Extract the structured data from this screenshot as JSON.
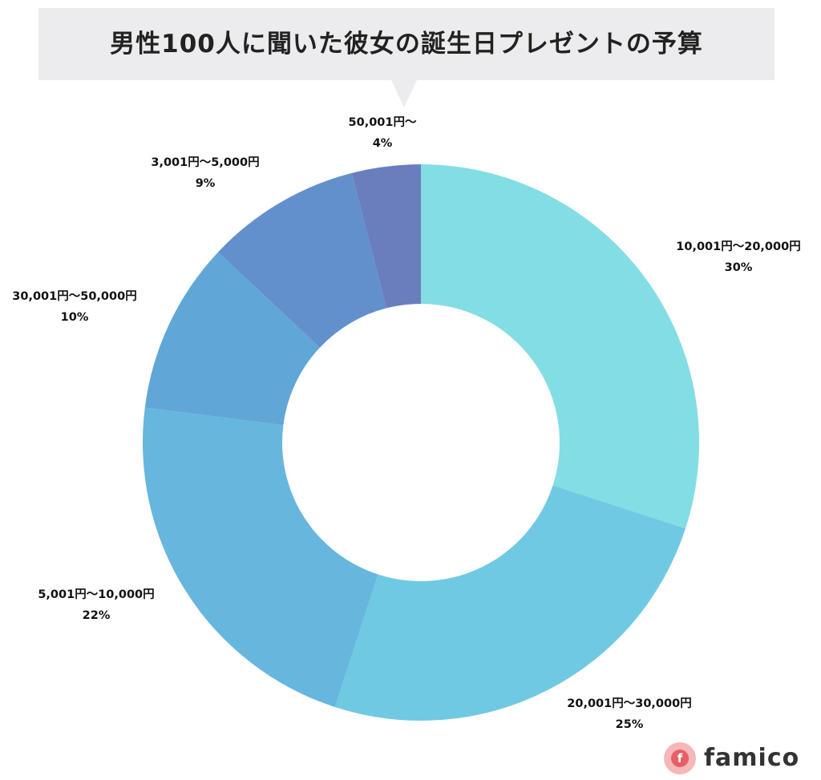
{
  "colors": {
    "banner": "#ececee",
    "label": "#111111",
    "logo_accent": "#e65f66"
  },
  "chart_data": {
    "type": "pie",
    "subtype": "donut",
    "title": "男性100人に聞いた彼女の誕生日プレゼントの予算",
    "slices": [
      {
        "category": "10,001円〜20,000円",
        "value": 30,
        "value_label": "30%",
        "color": "#82dde4"
      },
      {
        "category": "20,001円〜30,000円",
        "value": 25,
        "value_label": "25%",
        "color": "#70c9e2"
      },
      {
        "category": "5,001円〜10,000円",
        "value": 22,
        "value_label": "22%",
        "color": "#66b6de"
      },
      {
        "category": "30,001円〜50,000円",
        "value": 10,
        "value_label": "10%",
        "color": "#60a7d8"
      },
      {
        "category": "3,001円〜5,000円",
        "value": 9,
        "value_label": "9%",
        "color": "#6190cd"
      },
      {
        "category": "50,001円〜",
        "value": 4,
        "value_label": "4%",
        "color": "#6a7ebe"
      }
    ],
    "start_angle_deg": 0,
    "direction": "clockwise"
  },
  "logo": {
    "icon": "famico-logo-icon",
    "glyph": "f",
    "text": "famico"
  }
}
